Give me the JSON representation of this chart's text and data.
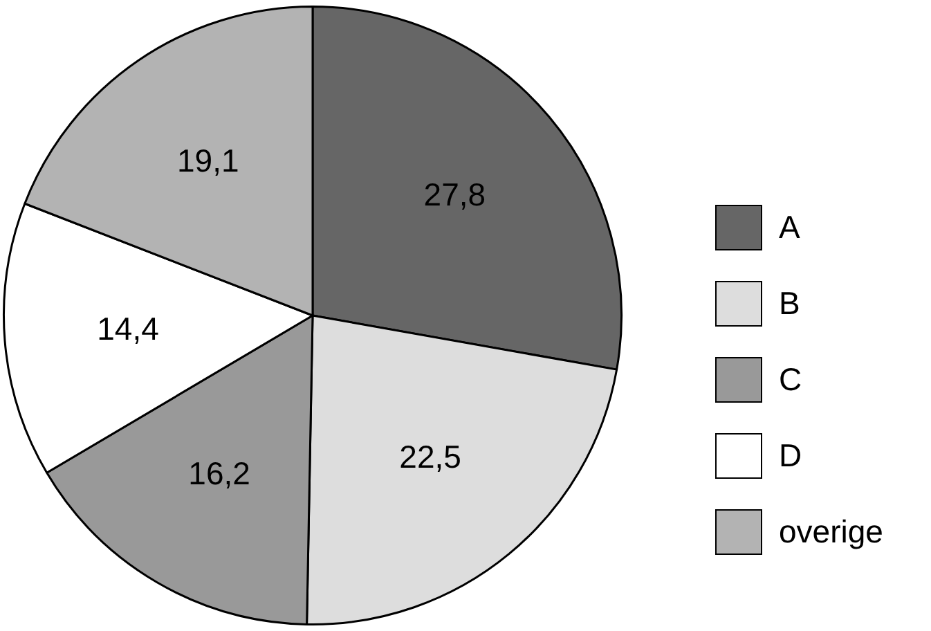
{
  "chart_data": {
    "type": "pie",
    "categories": [
      "A",
      "B",
      "C",
      "D",
      "overige"
    ],
    "values": [
      27.8,
      22.5,
      16.2,
      14.4,
      19.1
    ],
    "value_labels": [
      "27,8",
      "22,5",
      "16,2",
      "14,4",
      "19,1"
    ],
    "colors": [
      "#666666",
      "#dddddd",
      "#999999",
      "#ffffff",
      "#b3b3b3"
    ],
    "legend": "right"
  }
}
